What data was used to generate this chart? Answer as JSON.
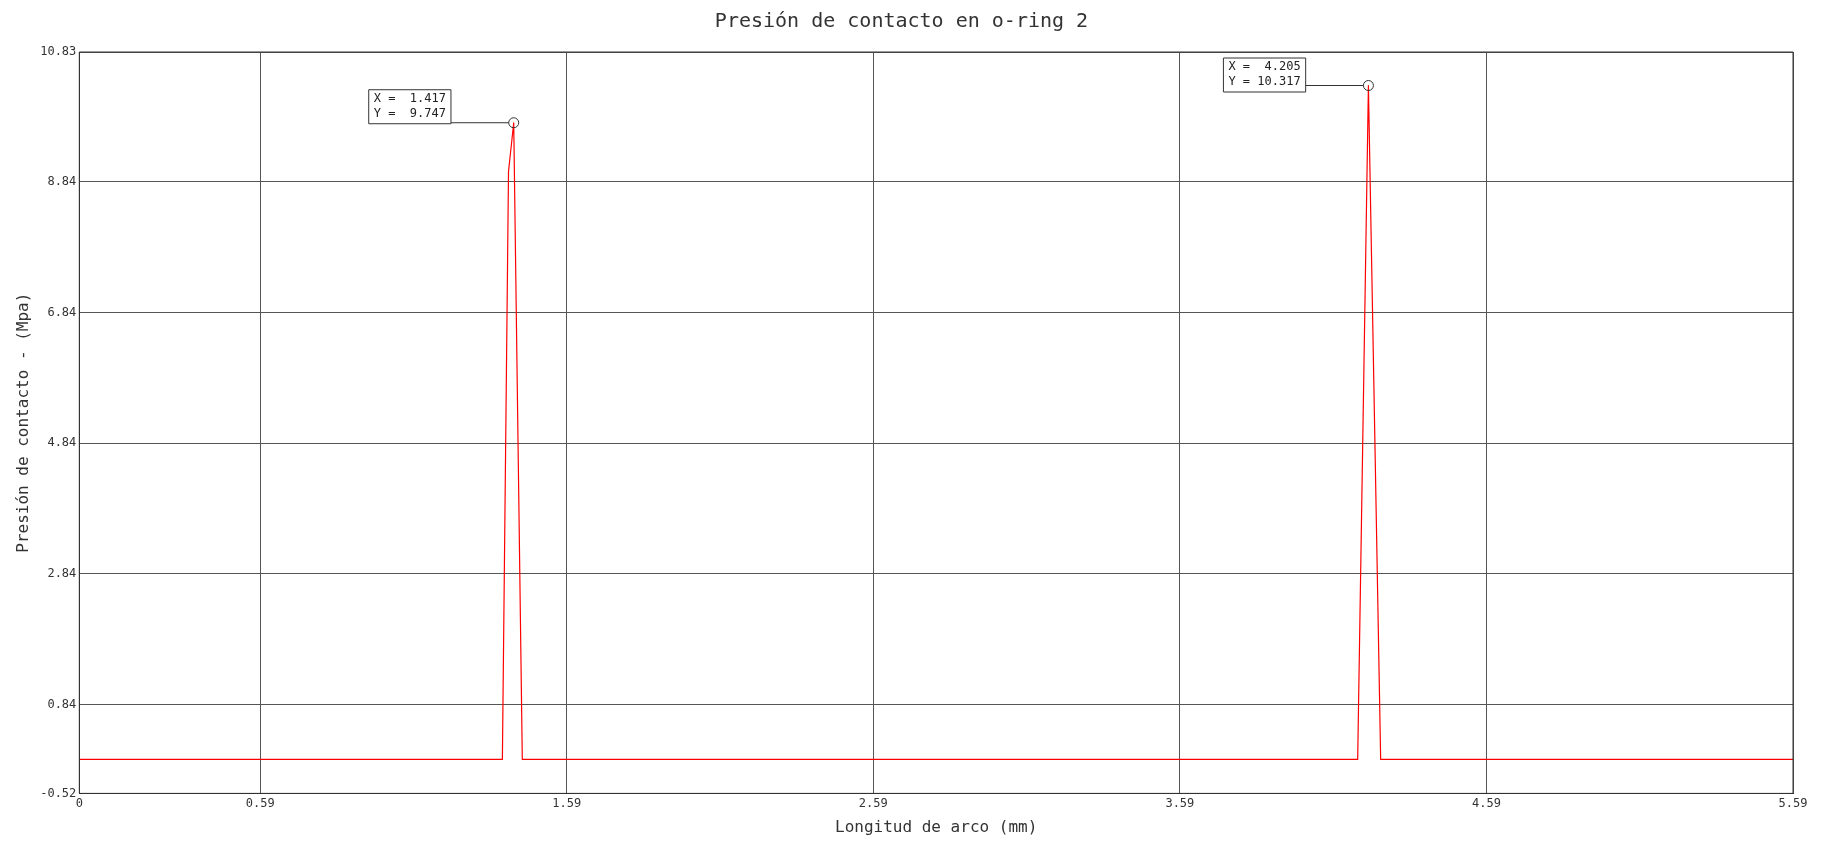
{
  "chart_data": {
    "type": "line",
    "title": "Presión de contacto en o-ring 2",
    "xlabel": "Longitud de arco (mm)",
    "ylabel": "Presión de contacto - (Mpa)",
    "x": [
      0,
      1.38,
      1.4,
      1.417,
      1.445,
      4.17,
      4.205,
      4.245,
      5.59
    ],
    "series": [
      {
        "color": "#ff0000",
        "values": [
          0,
          0,
          9.0,
          9.747,
          0,
          0,
          10.317,
          0,
          0
        ]
      }
    ],
    "xlim": [
      0,
      5.59
    ],
    "xticks": [
      0,
      0.59,
      1.59,
      2.59,
      3.59,
      4.59,
      5.59
    ],
    "ylim": [
      -0.52,
      10.83
    ],
    "yticks": [
      -0.52,
      0.84,
      2.84,
      4.84,
      6.84,
      8.84,
      10.83
    ],
    "grid": true,
    "legend": false,
    "marker": "none",
    "line_style": "solid",
    "annotations": [
      {
        "text": "X =  1.417\nY =  9.747",
        "x": 1.417,
        "y": 9.747
      },
      {
        "text": "X =  4.205\nY = 10.317",
        "x": 4.205,
        "y": 10.317
      }
    ]
  }
}
